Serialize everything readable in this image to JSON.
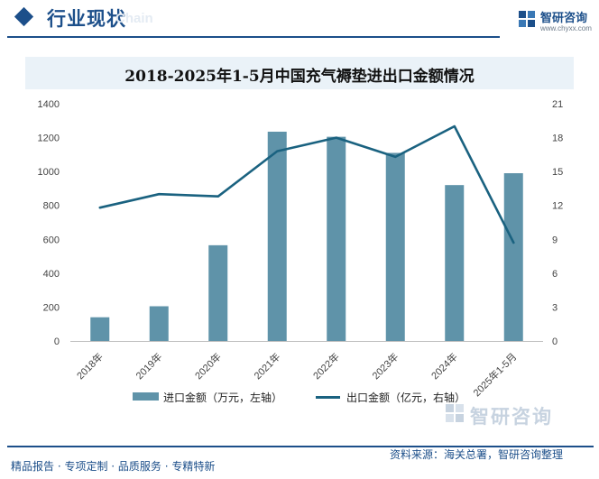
{
  "header": {
    "section_title": "行业现状",
    "ghost_text": "Chain",
    "brand_name": "智研咨询",
    "site_url": "www.chyxx.com"
  },
  "watermark_text": "智研咨询",
  "footer": {
    "left": "精品报告 · 专项定制 · 品质服务 · 专精特新",
    "right": "资料来源：海关总署，智研咨询整理"
  },
  "colors": {
    "brand": "#1c4f8a",
    "bar": "#5f93a9",
    "line": "#1a6280"
  },
  "chart_data": {
    "type": "bar",
    "title": "2018-2025年1-5月中国充气褥垫进出口金额情况",
    "categories": [
      "2018年",
      "2019年",
      "2020年",
      "2021年",
      "2022年",
      "2023年",
      "2024年",
      "2025年1-5月"
    ],
    "series": [
      {
        "name": "进口金额（万元，左轴）",
        "type": "bar",
        "axis": "left",
        "values": [
          140,
          205,
          565,
          1235,
          1205,
          1110,
          920,
          990
        ]
      },
      {
        "name": "出口金额（亿元，右轴）",
        "type": "line",
        "axis": "right",
        "values": [
          11.8,
          13.0,
          12.8,
          16.8,
          18.0,
          16.3,
          19.0,
          8.7
        ]
      }
    ],
    "y_left": {
      "ylim": [
        0,
        1400
      ],
      "ticks": [
        0,
        200,
        400,
        600,
        800,
        1000,
        1200,
        1400
      ]
    },
    "y_right": {
      "ylim": [
        0,
        21
      ],
      "ticks": [
        0,
        3,
        6,
        9,
        12,
        15,
        18,
        21
      ]
    },
    "grid": false,
    "legend_position": "bottom"
  }
}
